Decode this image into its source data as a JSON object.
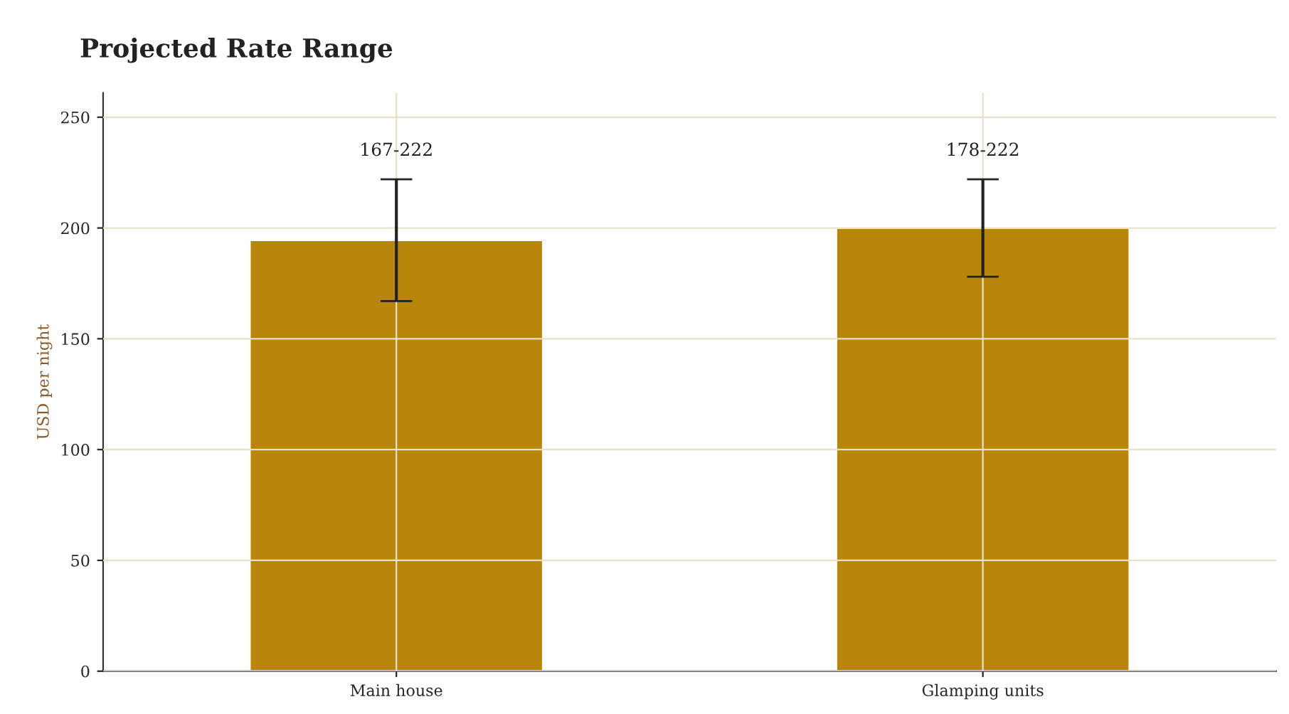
{
  "chart_data": {
    "type": "bar",
    "title": "Projected Rate Range",
    "ylabel": "USD per night",
    "categories": [
      "Main house",
      "Glamping units"
    ],
    "values": [
      194.5,
      200
    ],
    "errors": [
      [
        167,
        222
      ],
      [
        178,
        222
      ]
    ],
    "annotations": [
      {
        "text": "167-222",
        "x": "Main house",
        "y": 222
      },
      {
        "text": "178-222",
        "x": "Glamping units",
        "y": 222
      }
    ],
    "color": "#b8860b",
    "ylim": [
      0,
      261
    ],
    "yticks": [
      0,
      50,
      100,
      150,
      200,
      250
    ],
    "grid": true
  }
}
